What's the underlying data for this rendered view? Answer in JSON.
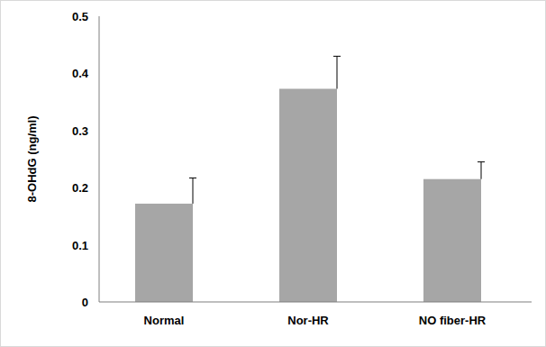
{
  "chart_data": {
    "type": "bar",
    "y_label": "8-OHdG (ng/ml)",
    "categories": [
      "Normal",
      "Nor-HR",
      "NO fiber-HR"
    ],
    "values": [
      0.172,
      0.373,
      0.215
    ],
    "errors": [
      0.045,
      0.057,
      0.03
    ],
    "color": "#a6a6a6",
    "ylim": [
      0,
      0.5
    ],
    "yticks": [
      0,
      0.1,
      0.2,
      0.3,
      0.4,
      0.5
    ],
    "grid": false
  }
}
